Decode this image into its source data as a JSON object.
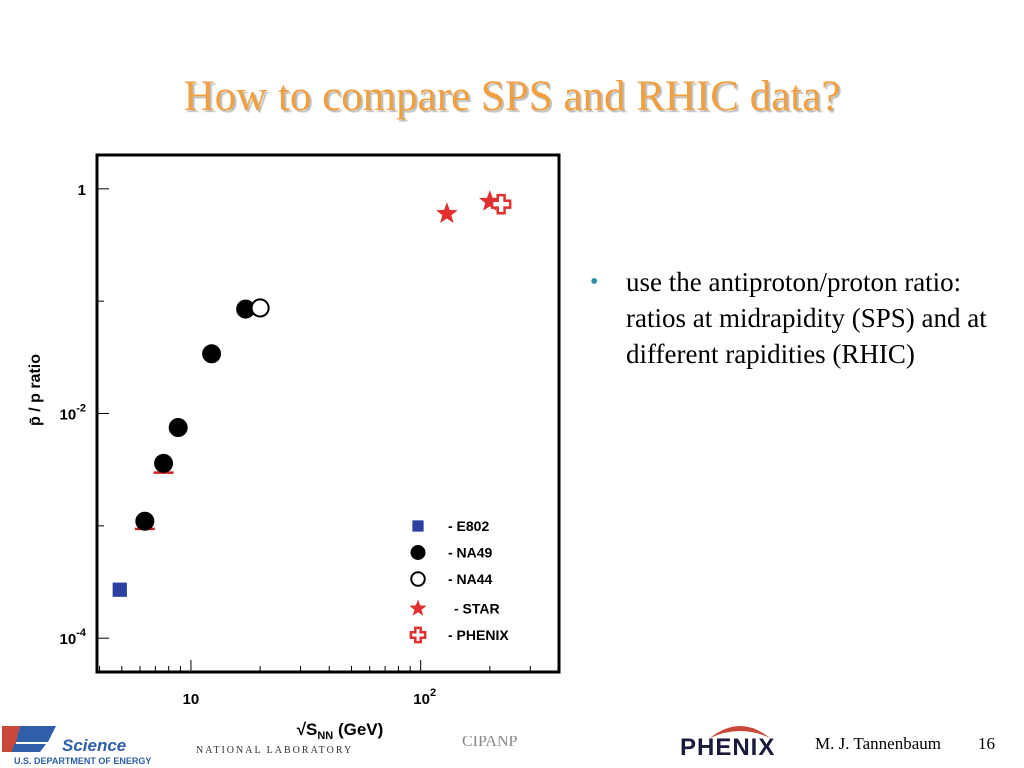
{
  "slide": {
    "title": "How to compare SPS and RHIC data?",
    "bullets": [
      "use the antiproton/proton ratio: ratios at midrapidity (SPS) and at different rapidities (RHIC)"
    ]
  },
  "footer": {
    "doe_logo_word": "Science",
    "doe_logo_sub": "U.S. DEPARTMENT OF ENERGY",
    "lab_name": "NATIONAL LABORATORY",
    "conference": "CIPANP",
    "phenix_logo": "PHENIX",
    "author": "M. J. Tannenbaum",
    "page_number": "16"
  },
  "chart_data": {
    "type": "scatter",
    "title": "",
    "xlabel": "√S_NN (GeV)",
    "ylabel": "p̄ / p  ratio",
    "x_scale": "log",
    "y_scale": "log",
    "xlim": [
      3.9,
      400
    ],
    "ylim": [
      5e-05,
      2
    ],
    "x_ticks": [
      {
        "value": 10,
        "label": "10"
      },
      {
        "value": 100,
        "label": "10",
        "sup": "2"
      }
    ],
    "y_ticks": [
      {
        "value": 1,
        "label": "1"
      },
      {
        "value": 0.01,
        "label": "10",
        "sup": "-2"
      },
      {
        "value": 0.0001,
        "label": "10",
        "sup": "-4"
      }
    ],
    "grid": false,
    "legend_position": "bottom-right",
    "colors": {
      "E802": "#2d3fa0",
      "NA49": "#000000",
      "NA44": "#000000",
      "STAR": "#e03030",
      "PHENIX": "#e03030",
      "error_bar": "#d02020"
    },
    "series": [
      {
        "name": "- E802",
        "marker": "square-filled",
        "points": [
          {
            "x": 4.9,
            "y": 0.00027
          }
        ]
      },
      {
        "name": "- NA49",
        "marker": "circle-filled",
        "points": [
          {
            "x": 6.3,
            "y": 0.0011
          },
          {
            "x": 7.6,
            "y": 0.0036
          },
          {
            "x": 8.8,
            "y": 0.0075
          },
          {
            "x": 12.3,
            "y": 0.034
          },
          {
            "x": 17.3,
            "y": 0.085
          }
        ]
      },
      {
        "name": "- NA44",
        "marker": "circle-open",
        "points": [
          {
            "x": 20.0,
            "y": 0.087
          }
        ]
      },
      {
        "name": "- STAR",
        "marker": "star",
        "points": [
          {
            "x": 130,
            "y": 0.6
          },
          {
            "x": 200,
            "y": 0.77
          }
        ]
      },
      {
        "name": "- PHENIX",
        "marker": "cross-open",
        "points": [
          {
            "x": 224,
            "y": 0.73
          }
        ]
      }
    ],
    "error_markers": [
      {
        "x": 6.3,
        "y": 0.00098
      },
      {
        "x": 7.6,
        "y": 0.0031
      }
    ]
  }
}
